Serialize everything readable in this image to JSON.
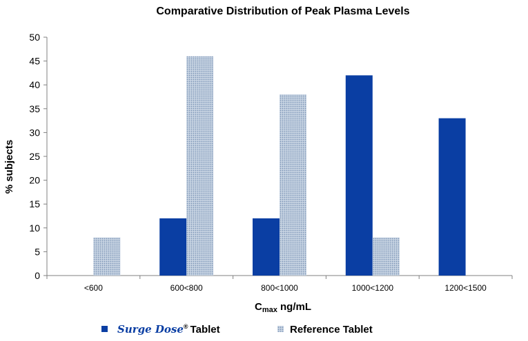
{
  "chart_data": {
    "type": "bar",
    "title": "Comparative Distribution of Peak Plasma Levels",
    "ylabel": "% subjects",
    "xlabel_main": "C",
    "xlabel_sub": "max",
    "xlabel_rest": " ng/mL",
    "categories": [
      "<600",
      "600<800",
      "800<1000",
      "1000<1200",
      "1200<1500"
    ],
    "ylim": [
      0,
      50
    ],
    "yticks": [
      0,
      5,
      10,
      15,
      20,
      25,
      30,
      35,
      40,
      45,
      50
    ],
    "grid": false,
    "legend_position": "bottom",
    "series": [
      {
        "name": "Tablet",
        "brand": "Surge Dose",
        "brand_mark": "®",
        "color": "#0a3ea3",
        "pattern": "solid",
        "values": [
          0,
          12,
          12,
          42,
          33
        ]
      },
      {
        "name": "Reference Tablet",
        "color": "#9fb4cf",
        "pattern": "dotted",
        "values": [
          8,
          46,
          38,
          8,
          0
        ]
      }
    ]
  }
}
